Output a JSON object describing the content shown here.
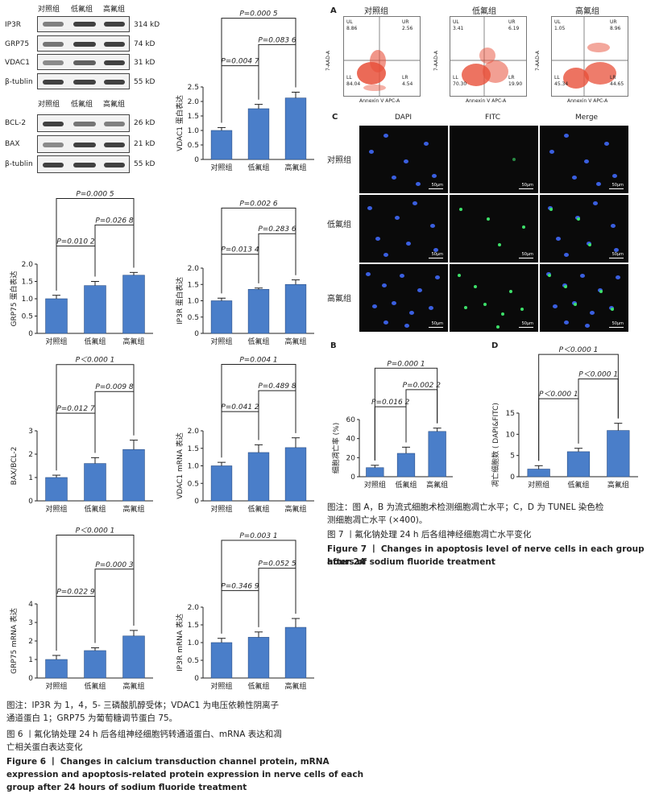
{
  "western_blot": {
    "groups_top": [
      "对照组",
      "低氟组",
      "高氟组"
    ],
    "groups_bottom": [
      "对照组",
      "低氟组",
      "高氟组"
    ],
    "top_proteins": [
      {
        "name": "IP3R",
        "kd": "314 kD"
      },
      {
        "name": "GRP75",
        "kd": "74 kD"
      },
      {
        "name": "VDAC1",
        "kd": "31 kD"
      },
      {
        "name": "β-tublin",
        "kd": "55 kD"
      }
    ],
    "bottom_proteins": [
      {
        "name": "BCL-2",
        "kd": "26 kD"
      },
      {
        "name": "BAX",
        "kd": "21 kD"
      },
      {
        "name": "β-tublin",
        "kd": "55 kD"
      }
    ]
  },
  "panel_letters": {
    "a": "A",
    "b": "B",
    "c": "C",
    "d": "D"
  },
  "flow": {
    "titles": [
      "对照组",
      "低氟组",
      "高氟组"
    ],
    "ylabel": "7-AAD-A",
    "xlabel": "Annexin V APC-A",
    "quadrant_labels": [
      "UL",
      "UR",
      "LL",
      "LR"
    ],
    "values": [
      {
        "UL": "8.86",
        "UR": "2.56",
        "LL": "84.04",
        "LR": "4.54"
      },
      {
        "UL": "3.41",
        "UR": "6.19",
        "LL": "70.30",
        "LR": "19.90"
      },
      {
        "UL": "1.05",
        "UR": "8.96",
        "LL": "45.34",
        "LR": "44.65"
      }
    ]
  },
  "tunel": {
    "columns": [
      "DAPI",
      "FITC",
      "Merge"
    ],
    "rows": [
      "对照组",
      "低氟组",
      "高氟组"
    ],
    "scale_label": "50μm"
  },
  "chart_data": [
    {
      "id": "vdac1_protein",
      "type": "bar",
      "categories": [
        "对照组",
        "低氟组",
        "高氟组"
      ],
      "values": [
        1.0,
        1.75,
        2.12
      ],
      "errors": [
        0.1,
        0.15,
        0.2
      ],
      "ylabel": "VDAC1 蛋白表达",
      "ylim": [
        0,
        2.5
      ],
      "yticks": [
        "0",
        "0.5",
        "1.0",
        "1.5",
        "2.0",
        "2.5"
      ],
      "p_values": [
        "P=0.004 7",
        "P=0.083 6",
        "P=0.000 5"
      ]
    },
    {
      "id": "grp75_protein",
      "type": "bar",
      "categories": [
        "对照组",
        "低氟组",
        "高氟组"
      ],
      "values": [
        1.0,
        1.38,
        1.68
      ],
      "errors": [
        0.1,
        0.12,
        0.08
      ],
      "ylabel": "GRP75 蛋白表达",
      "ylim": [
        0,
        2.0
      ],
      "yticks": [
        "0",
        "0.5",
        "1.0",
        "1.5",
        "2.0"
      ],
      "p_values": [
        "P=0.010 2",
        "P=0.026 8",
        "P=0.000 5"
      ]
    },
    {
      "id": "ip3r_protein",
      "type": "bar",
      "categories": [
        "对照组",
        "低氟组",
        "高氟组"
      ],
      "values": [
        1.0,
        1.35,
        1.5
      ],
      "errors": [
        0.08,
        0.04,
        0.14
      ],
      "ylabel": "IP3R 蛋白表达",
      "ylim": [
        0,
        2.0
      ],
      "yticks": [
        "0",
        "0.5",
        "1.0",
        "1.5",
        "2.0"
      ],
      "p_values": [
        "P=0.013 4",
        "P=0.283 6",
        "P=0.002 6"
      ]
    },
    {
      "id": "bax_bcl2",
      "type": "bar",
      "categories": [
        "对照组",
        "低氟组",
        "高氟组"
      ],
      "values": [
        1.0,
        1.6,
        2.2
      ],
      "errors": [
        0.1,
        0.25,
        0.4
      ],
      "ylabel": "BAX/BCL-2",
      "ylim": [
        0,
        3
      ],
      "yticks": [
        "0",
        "1",
        "2",
        "3"
      ],
      "p_values": [
        "P=0.012 7",
        "P=0.009 8",
        "P＜0.000 1"
      ]
    },
    {
      "id": "vdac1_mrna",
      "type": "bar",
      "categories": [
        "对照组",
        "低氟组",
        "高氟组"
      ],
      "values": [
        1.0,
        1.38,
        1.52
      ],
      "errors": [
        0.1,
        0.22,
        0.28
      ],
      "ylabel": "VDAC1 mRNA 表达",
      "ylim": [
        0,
        2.0
      ],
      "yticks": [
        "0",
        "0.5",
        "1.0",
        "1.5",
        "2.0"
      ],
      "p_values": [
        "P=0.041 2",
        "P=0.489 8",
        "P=0.004 1"
      ]
    },
    {
      "id": "grp75_mrna",
      "type": "bar",
      "categories": [
        "对照组",
        "低氟组",
        "高氟组"
      ],
      "values": [
        1.0,
        1.48,
        2.27
      ],
      "errors": [
        0.22,
        0.15,
        0.3
      ],
      "ylabel": "GRP75 mRNA 表达",
      "ylim": [
        0,
        4
      ],
      "yticks": [
        "0",
        "1",
        "2",
        "3",
        "4"
      ],
      "p_values": [
        "P=0.022 9",
        "P=0.000 3",
        "P＜0.000 1"
      ]
    },
    {
      "id": "ip3r_mrna",
      "type": "bar",
      "categories": [
        "对照组",
        "低氟组",
        "高氟组"
      ],
      "values": [
        1.0,
        1.15,
        1.43
      ],
      "errors": [
        0.12,
        0.15,
        0.25
      ],
      "ylabel": "IP3R mRNA 表达",
      "ylim": [
        0,
        2.0
      ],
      "yticks": [
        "0",
        "0.5",
        "1.0",
        "1.5",
        "2.0"
      ],
      "p_values": [
        "P=0.346 9",
        "P=0.052 5",
        "P=0.003 1"
      ]
    },
    {
      "id": "apoptosis_rate",
      "type": "bar",
      "categories": [
        "对照组",
        "低氟组",
        "高氟组"
      ],
      "values": [
        9.5,
        24.5,
        47.5
      ],
      "errors": [
        2.5,
        6.5,
        3.5
      ],
      "ylabel": "细胞凋亡率 (%)",
      "ylim": [
        0,
        60
      ],
      "yticks": [
        "0",
        "20",
        "40",
        "60"
      ],
      "p_values": [
        "P=0.016 2",
        "P=0.002 2",
        "P=0.000 1"
      ]
    },
    {
      "id": "apoptotic_cells",
      "type": "bar",
      "categories": [
        "对照组",
        "低氟组",
        "高氟组"
      ],
      "values": [
        1.8,
        5.9,
        10.9
      ],
      "errors": [
        0.8,
        0.8,
        1.7
      ],
      "ylabel": "凋亡细胞数 ( DAPI&FITC)",
      "ylim": [
        0,
        15
      ],
      "yticks": [
        "0",
        "5",
        "10",
        "15"
      ],
      "p_values": [
        "P＜0.000 1",
        "P＜0.000 1",
        "P＜0.000 1"
      ]
    }
  ],
  "captions": {
    "fig6_note_1": "图注：IP3R 为 1，4，5- 三磷酸肌醇受体；VDAC1 为电压依赖性阴离子",
    "fig6_note_2": "通道蛋白 1；GRP75 为葡萄糖调节蛋白 75。",
    "fig6_title_1": "图 6 丨氟化钠处理 24 h 后各组神经细胞钙转通道蛋白、mRNA 表达和凋",
    "fig6_title_2": "亡相关蛋白表达变化",
    "fig6_en_1": "Figure 6  丨  Changes in calcium transduction channel protein, mRNA",
    "fig6_en_2": "expression and apoptosis-related protein expression in nerve cells of each",
    "fig6_en_3": "group after 24 hours of sodium fluoride treatment",
    "fig7_note_1": "图注：图 A，B 为流式细胞术检测细胞凋亡水平；C，D 为 TUNEL 染色检",
    "fig7_note_2": "测细胞凋亡水平 (×400)。",
    "fig7_title": "图 7 丨氟化钠处理 24 h 后各组神经细胞凋亡水平变化",
    "fig7_en_1": "Figure 7  丨  Changes in apoptosis level of nerve cells in each group after 24",
    "fig7_en_2": "hours of sodium fluoride treatment"
  }
}
